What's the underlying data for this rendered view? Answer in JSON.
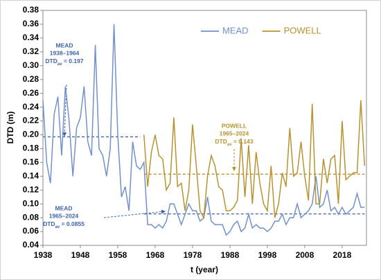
{
  "chart_data": {
    "type": "line",
    "xlabel": "t (year)",
    "ylabel": "DTD (m)",
    "x": [
      1938,
      1939,
      1940,
      1941,
      1942,
      1943,
      1944,
      1945,
      1946,
      1947,
      1948,
      1949,
      1950,
      1951,
      1952,
      1953,
      1954,
      1955,
      1956,
      1957,
      1958,
      1959,
      1960,
      1961,
      1962,
      1963,
      1964,
      1965,
      1966,
      1967,
      1968,
      1969,
      1970,
      1971,
      1972,
      1973,
      1974,
      1975,
      1976,
      1977,
      1978,
      1979,
      1980,
      1981,
      1982,
      1983,
      1984,
      1985,
      1986,
      1987,
      1988,
      1989,
      1990,
      1991,
      1992,
      1993,
      1994,
      1995,
      1996,
      1997,
      1998,
      1999,
      2000,
      2001,
      2002,
      2003,
      2004,
      2005,
      2006,
      2007,
      2008,
      2009,
      2010,
      2011,
      2012,
      2013,
      2014,
      2015,
      2016,
      2017,
      2018,
      2019,
      2020,
      2021,
      2022,
      2023,
      2024
    ],
    "series": [
      {
        "name": "MEAD",
        "color": "#7190cc",
        "values": [
          0.25,
          0.16,
          0.13,
          0.23,
          0.255,
          0.17,
          0.27,
          0.22,
          0.14,
          0.21,
          0.225,
          0.27,
          0.19,
          0.17,
          0.33,
          0.18,
          0.17,
          0.14,
          0.18,
          0.36,
          0.2,
          0.11,
          0.125,
          0.09,
          0.19,
          0.155,
          0.15,
          0.16,
          0.07,
          0.07,
          0.065,
          0.07,
          0.065,
          0.075,
          0.1,
          0.1,
          0.085,
          0.07,
          0.085,
          0.1,
          0.09,
          0.09,
          0.075,
          0.08,
          0.11,
          0.075,
          0.07,
          0.07,
          0.07,
          0.055,
          0.06,
          0.07,
          0.075,
          0.06,
          0.065,
          0.085,
          0.065,
          0.07,
          0.065,
          0.065,
          0.06,
          0.065,
          0.075,
          0.075,
          0.085,
          0.07,
          0.08,
          0.08,
          0.1,
          0.08,
          0.085,
          0.09,
          0.1,
          0.14,
          0.095,
          0.1,
          0.12,
          0.09,
          0.095,
          0.085,
          0.095,
          0.085,
          0.09,
          0.095,
          0.115,
          0.095,
          0.095
        ]
      },
      {
        "name": "POWELL",
        "color": "#b8922e",
        "values": [
          null,
          null,
          null,
          null,
          null,
          null,
          null,
          null,
          null,
          null,
          null,
          null,
          null,
          null,
          null,
          null,
          null,
          null,
          null,
          null,
          null,
          null,
          null,
          null,
          null,
          null,
          null,
          0.2,
          0.125,
          0.175,
          0.2,
          0.17,
          0.165,
          0.12,
          0.13,
          0.225,
          0.125,
          0.13,
          0.09,
          0.12,
          0.215,
          0.155,
          0.09,
          0.08,
          0.14,
          0.17,
          0.155,
          0.125,
          0.12,
          0.09,
          0.09,
          0.095,
          0.105,
          0.195,
          0.11,
          0.185,
          0.1,
          0.175,
          0.13,
          0.1,
          0.09,
          0.155,
          0.08,
          0.1,
          0.145,
          0.125,
          0.21,
          0.14,
          0.145,
          0.19,
          0.14,
          0.105,
          0.245,
          0.1,
          0.1,
          0.165,
          0.13,
          0.165,
          0.17,
          0.1,
          0.22,
          0.135,
          0.14,
          0.145,
          0.145,
          0.25,
          0.155
        ]
      }
    ],
    "xlim": [
      1938,
      2024.5
    ],
    "ylim": [
      0.04,
      0.38
    ],
    "xticks": [
      1938,
      1948,
      1958,
      1968,
      1978,
      1988,
      1998,
      2008,
      2018
    ],
    "yticks": [
      0.04,
      0.06,
      0.08,
      {
        "value": 0.1,
        "label": "0.10"
      },
      0.12,
      0.14,
      0.16,
      0.18,
      {
        "value": 0.2,
        "label": "0.20"
      },
      0.22,
      0.24,
      0.26,
      0.28,
      {
        "value": 0.3,
        "label": "0.30"
      },
      0.32,
      0.34,
      0.36,
      0.38
    ],
    "legend": "top",
    "reference_lines": [
      {
        "value": 0.197,
        "span": [
          1938,
          1964
        ],
        "color": "#3c62ad",
        "lines": [
          "MEAD",
          "1938–1964"
        ],
        "stat": {
          "name": "DTD",
          "sub": "av",
          "text": " = 0.197"
        }
      },
      {
        "value": 0.143,
        "span": [
          1965,
          2024
        ],
        "color": "#b8922e",
        "lines": [
          "POWELL",
          "1965–2024"
        ],
        "stat": {
          "name": "DTD",
          "sub": "av",
          "text": " = 0.143"
        }
      },
      {
        "value": 0.0855,
        "span": [
          1965,
          2024
        ],
        "color": "#3c62ad",
        "lines": [
          "MEAD",
          "1965–2024"
        ],
        "stat": {
          "name": "DTD",
          "sub": "av",
          "text": " = 0.0855"
        }
      }
    ]
  }
}
